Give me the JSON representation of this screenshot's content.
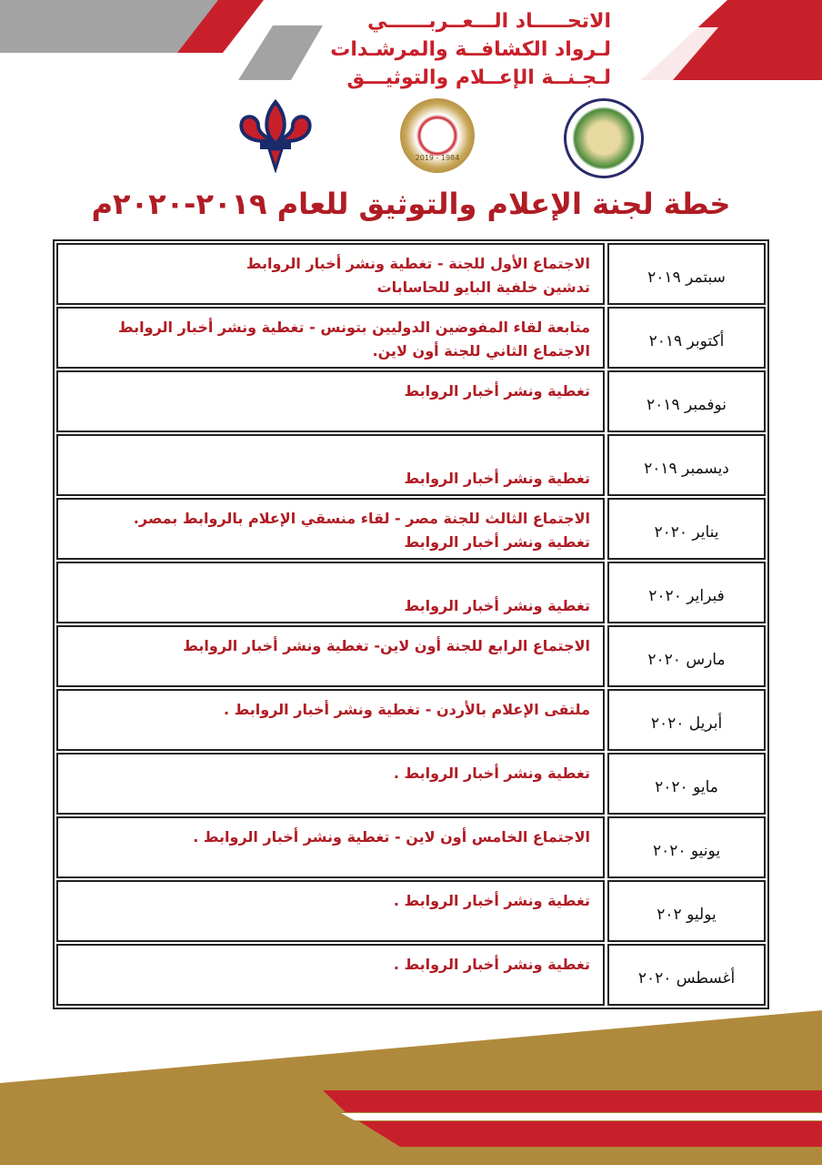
{
  "header": {
    "lines": [
      "الاتحـــــاد الـــعــربــــــي",
      "لـرواد الكشافــة والمرشـدات",
      "لـجـنــة الإعــلام والتوثيـــق"
    ]
  },
  "logos": [
    "saudi-scouts-association-logo",
    "arab-union-scout-guide-pioneers-logo",
    "scout-fleur-de-lis-logo"
  ],
  "logo_text": {
    "union_years": "2019 - 1984"
  },
  "title": "خطة لجنة الإعلام والتوثيق للعام  ٢٠١٩-٢٠٢٠م",
  "colors": {
    "red": "#c8202a",
    "gray": "#a3a3a3",
    "gold": "#b08a3c",
    "title": "#b01c24"
  },
  "rows": [
    {
      "date": "سبتمر ٢٠١٩",
      "lines": [
        "الاجتماع الأول للجنة  - تغطية ونشر أخبار الروابط",
        "تدشين خلفية البايو للحاسابات"
      ]
    },
    {
      "date": "أكتوبر ٢٠١٩",
      "lines": [
        "متابعة لقاء المفوضين الدوليين بتونس - تغطية ونشر أخبار الروابط",
        "الاجتماع الثاني للجنة أون لاين."
      ]
    },
    {
      "date": "نوفمبر ٢٠١٩",
      "lines": [
        "تغطية ونشر أخبار الروابط"
      ]
    },
    {
      "date": "ديسمبر ٢٠١٩",
      "lines": [
        "",
        "تغطية ونشر أخبار الروابط"
      ]
    },
    {
      "date": "يناير ٢٠٢٠",
      "lines": [
        "الاجتماع الثالث للجنة مصر  -  لقاء منسقي الإعلام بالروابط بمصر.",
        " تغطية ونشر أخبار الروابط"
      ]
    },
    {
      "date": "فبراير ٢٠٢٠",
      "lines": [
        "",
        "تغطية ونشر أخبار الروابط"
      ]
    },
    {
      "date": "مارس ٢٠٢٠",
      "lines": [
        "الاجتماع الرابع للجنة أون لاين- تغطية ونشر أخبار الروابط"
      ]
    },
    {
      "date": "أبريل ٢٠٢٠",
      "lines": [
        "ملتقى الإعلام بالأردن - تغطية ونشر أخبار الروابط ."
      ]
    },
    {
      "date": "مايو ٢٠٢٠",
      "lines": [
        "تغطية ونشر أخبار الروابط ."
      ]
    },
    {
      "date": "يونيو ٢٠٢٠",
      "lines": [
        "الاجتماع الخامس أون لاين - تغطية ونشر أخبار الروابط ."
      ]
    },
    {
      "date": "يوليو ٢٠٢",
      "lines": [
        "تغطية ونشر أخبار الروابط ."
      ]
    },
    {
      "date": "أغسطس ٢٠٢٠",
      "lines": [
        "تغطية ونشر أخبار الروابط ."
      ]
    }
  ]
}
